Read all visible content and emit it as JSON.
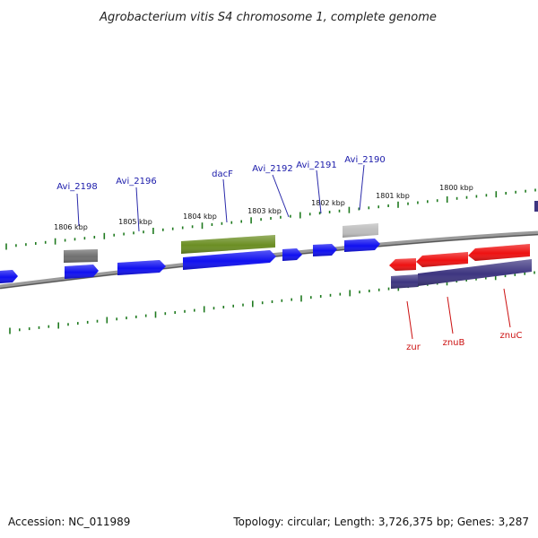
{
  "title": "Agrobacterium vitis S4 chromosome 1, complete genome",
  "footer": {
    "accession": "Accession: NC_011989",
    "stats": "Topology: circular; Length: 3,726,375 bp; Genes: 3,287"
  },
  "colors": {
    "tick": "#1f7a1f",
    "backbone": "#7c7c7c",
    "blue_gene": "#1010f0",
    "green_gene": "#6b8e23",
    "gray_gene": "#7a7a7a",
    "light_gray_gene": "#c0c0c0",
    "red_gene": "#ee1111",
    "navy_gene": "#3d3580",
    "top_label": "#1a1aaa",
    "bottom_label": "#cc1111"
  },
  "tick_labels": [
    "1806 kbp",
    "1805 kbp",
    "1804 kbp",
    "1803 kbp",
    "1802 kbp",
    "1801 kbp",
    "1800 kbp"
  ],
  "gene_labels_top": [
    "Avi_2198",
    "Avi_2196",
    "dacF",
    "Avi_2192",
    "Avi_2191",
    "Avi_2190"
  ],
  "gene_labels_bottom": [
    "zur",
    "znuB",
    "znuC"
  ]
}
